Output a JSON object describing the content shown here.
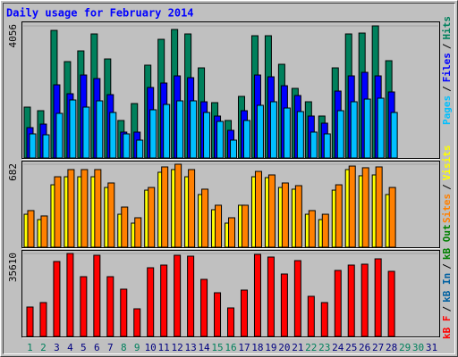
{
  "separator": "/",
  "chart_data": [
    {
      "type": "bar",
      "title": "Daily usage for February 2014",
      "ylim": [
        0,
        4056
      ],
      "yticks": [
        4056
      ],
      "series": [
        {
          "name": "Hits",
          "color": "#00805c",
          "values": [
            1562,
            1452,
            3918,
            2959,
            3288,
            3809,
            3041,
            1151,
            1671,
            2850,
            3644,
            3946,
            3809,
            2767,
            1699,
            1151,
            1891,
            3754,
            3754,
            2877,
            2137,
            1726,
            1288,
            2767,
            3809,
            3836,
            4056,
            2987,
            null,
            null,
            null
          ]
        },
        {
          "name": "Files",
          "color": "#0000ff",
          "values": [
            932,
            1041,
            2247,
            1973,
            2548,
            2439,
            1945,
            795,
            795,
            2165,
            2302,
            2521,
            2466,
            1726,
            1288,
            849,
            1452,
            2548,
            2493,
            2219,
            1918,
            1288,
            1069,
            2055,
            2521,
            2630,
            2521,
            2028,
            null,
            null,
            null
          ]
        },
        {
          "name": "Pages",
          "color": "#00c0ff",
          "values": [
            740,
            712,
            1370,
            1781,
            1562,
            1754,
            1397,
            740,
            548,
            1480,
            1644,
            1754,
            1754,
            1397,
            1123,
            548,
            1151,
            1617,
            1726,
            1534,
            1425,
            795,
            740,
            1452,
            1726,
            1808,
            1836,
            1397,
            null,
            null,
            null
          ]
        }
      ]
    },
    {
      "type": "bar",
      "ylim": [
        0,
        682
      ],
      "yticks": [
        682
      ],
      "series": [
        {
          "name": "Visits",
          "color": "#ffff00",
          "values": [
            271,
            227,
            513,
            579,
            579,
            579,
            491,
            271,
            198,
            469,
            616,
            638,
            579,
            433,
            308,
            198,
            345,
            579,
            572,
            491,
            477,
            271,
            227,
            469,
            638,
            587,
            594,
            433,
            null,
            null,
            null
          ]
        },
        {
          "name": "Sites",
          "color": "#ff8000",
          "values": [
            301,
            257,
            579,
            638,
            638,
            638,
            528,
            330,
            242,
            491,
            660,
            682,
            638,
            477,
            345,
            242,
            345,
            623,
            594,
            528,
            506,
            301,
            271,
            513,
            667,
            653,
            660,
            491,
            null,
            null,
            null
          ]
        }
      ]
    },
    {
      "type": "bar",
      "ylim": [
        0,
        35610
      ],
      "yticks": [
        35610
      ],
      "categories": [
        "1",
        "2",
        "3",
        "4",
        "5",
        "6",
        "7",
        "8",
        "9",
        "10",
        "11",
        "12",
        "13",
        "14",
        "15",
        "16",
        "17",
        "18",
        "19",
        "20",
        "21",
        "22",
        "23",
        "24",
        "25",
        "26",
        "27",
        "28",
        "29",
        "30",
        "31"
      ],
      "category_colors": [
        "#00805c",
        "#00805c",
        "#000080",
        "#000080",
        "#000080",
        "#000080",
        "#000080",
        "#00805c",
        "#00805c",
        "#000080",
        "#000080",
        "#000080",
        "#000080",
        "#000080",
        "#00805c",
        "#00805c",
        "#000080",
        "#000080",
        "#000080",
        "#000080",
        "#000080",
        "#00805c",
        "#00805c",
        "#000080",
        "#000080",
        "#000080",
        "#000080",
        "#000080",
        "#00805c",
        "#00805c",
        "#000080"
      ],
      "series": [
        {
          "name": "kB F",
          "color": "#ff0000",
          "values": [
            12636,
            14550,
            32164,
            35610,
            25654,
            34844,
            25654,
            20294,
            11870,
            29483,
            30632,
            34844,
            34461,
            24506,
            18762,
            12253,
            19911,
            35227,
            34078,
            26803,
            32547,
            17231,
            14550,
            28335,
            30632,
            31015,
            33312,
            27952,
            null,
            null,
            null
          ]
        }
      ],
      "extra_legend": [
        {
          "name": "kB In",
          "color": "#0060a0"
        },
        {
          "name": "kB Out",
          "color": "#008000"
        }
      ]
    }
  ]
}
